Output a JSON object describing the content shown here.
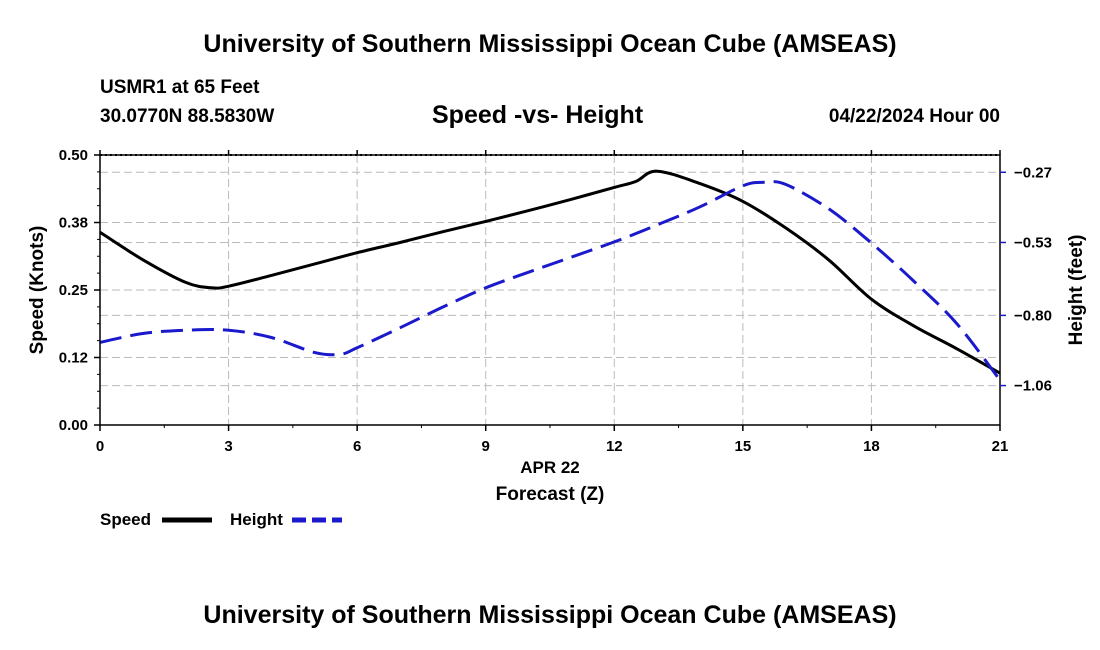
{
  "header": {
    "title": "University of Southern Mississippi Ocean Cube (AMSEAS)",
    "station": "USMR1 at 65 Feet",
    "coords": "30.0770N  88.5830W",
    "datetime": "04/22/2024 Hour 00"
  },
  "footer": {
    "title": "University of Southern Mississippi Ocean Cube (AMSEAS)"
  },
  "colors": {
    "speed": "#000000",
    "height": "#1a1acc",
    "grid": "#bbbbbb"
  },
  "chart_data": {
    "type": "line",
    "title": "Speed -vs- Height",
    "xlabel": "Forecast (Z)",
    "xsublabel": "APR 22",
    "ylabel": "Speed (Knots)",
    "y2label": "Height (feet)",
    "xlim": [
      0,
      21
    ],
    "ylim": [
      0,
      0.5
    ],
    "y2lim": [
      -1.206,
      -0.206
    ],
    "xticks": [
      "0",
      "3",
      "6",
      "9",
      "12",
      "15",
      "18",
      "21"
    ],
    "xtick_values": [
      0,
      3,
      6,
      9,
      12,
      15,
      18,
      21
    ],
    "yticks": [
      "0.00",
      "0.12",
      "0.25",
      "0.38",
      "0.50"
    ],
    "ytick_values": [
      0,
      0.125,
      0.25,
      0.375,
      0.5
    ],
    "y2ticks": [
      "−0.27",
      "−0.53",
      "−0.80",
      "−1.06"
    ],
    "y2tick_values": [
      -0.27,
      -0.53,
      -0.8,
      -1.06
    ],
    "grid": true,
    "legend": [
      "Speed",
      "Height"
    ],
    "series": [
      {
        "name": "Speed",
        "axis": "left",
        "style": "solid",
        "x": [
          0,
          1,
          2,
          2.6,
          3,
          4,
          5,
          6,
          7,
          8,
          9,
          10,
          11,
          12,
          12.5,
          13,
          14,
          15,
          16,
          17,
          18,
          19,
          20,
          21
        ],
        "values": [
          0.357,
          0.306,
          0.264,
          0.254,
          0.257,
          0.277,
          0.298,
          0.319,
          0.338,
          0.358,
          0.377,
          0.397,
          0.418,
          0.44,
          0.451,
          0.47,
          0.447,
          0.414,
          0.365,
          0.306,
          0.233,
          0.183,
          0.141,
          0.096
        ]
      },
      {
        "name": "Height",
        "axis": "right",
        "style": "dashed",
        "x": [
          0,
          1,
          2,
          3,
          4,
          5,
          5.6,
          6,
          7,
          8,
          9,
          10,
          11,
          12,
          13,
          14,
          15,
          15.5,
          16,
          17,
          18,
          19,
          20,
          21
        ],
        "values": [
          -0.9,
          -0.867,
          -0.855,
          -0.855,
          -0.882,
          -0.937,
          -0.944,
          -0.92,
          -0.846,
          -0.769,
          -0.698,
          -0.64,
          -0.584,
          -0.528,
          -0.465,
          -0.398,
          -0.32,
          -0.307,
          -0.315,
          -0.405,
          -0.532,
          -0.675,
          -0.832,
          -1.04
        ]
      }
    ]
  }
}
